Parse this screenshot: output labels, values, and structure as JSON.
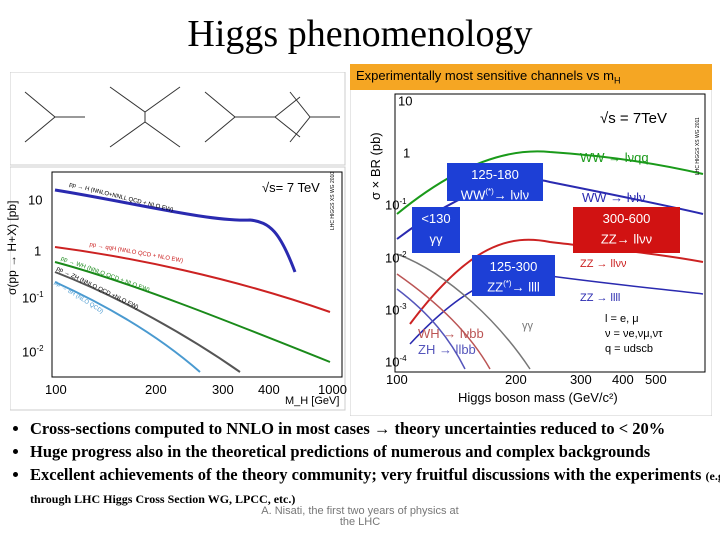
{
  "header": {
    "title": "Higgs phenomenology"
  },
  "left_plot": {
    "y_label": "σ(pp → H+X) [pb]",
    "x_label": "M_H [GeV]",
    "energy": "√s= 7 TeV",
    "source": "LHC HIGGS XS WG 2010",
    "yticks": [
      {
        "base": "10",
        "exp": ""
      },
      {
        "base": "1",
        "exp": ""
      },
      {
        "base": "10",
        "exp": "-1"
      },
      {
        "base": "10",
        "exp": "-2"
      }
    ],
    "xticks": [
      "100",
      "200",
      "300",
      "400",
      "1000"
    ],
    "curves": [
      "pp → H (NNLO+NNLL QCD + NLO EW)",
      "pp → qqH (NNLO QCD + NLO EW)",
      "pp → WH (NNLO QCD + NLO EW)",
      "pp → ZH (NNLO QCD +NLO EW)",
      "pp → ttH (NLO QCD)"
    ]
  },
  "right_plot": {
    "heading": {
      "text": "Experimentally most sensitive channels vs m",
      "sub": "H"
    },
    "y_label": "σ × BR (pb)",
    "x_label": "Higgs boson mass (GeV/c²)",
    "energy": "√s = 7TeV",
    "source": "LHC HIGGS XS WG 2011",
    "yticks": [
      {
        "base": "10",
        "exp": ""
      },
      {
        "base": "1",
        "exp": ""
      },
      {
        "base": "10",
        "exp": "-1"
      },
      {
        "base": "10",
        "exp": "-2"
      },
      {
        "base": "10",
        "exp": "-3"
      },
      {
        "base": "10",
        "exp": "-4"
      }
    ],
    "xticks": [
      "100",
      "200",
      "300",
      "400",
      "500"
    ],
    "channels": [
      "WW → lνqq",
      "WW → lνlν",
      "ZZ → llνν",
      "ZZ → llll",
      "γγ",
      "WH → lνbb",
      "ZH → llbb"
    ],
    "legend": [
      "l = e, μ",
      "ν = νe,νμ,ντ",
      "q = udscb"
    ]
  },
  "callouts": [
    {
      "range": "125-180",
      "label": "WW",
      "sup": "(*)",
      "rest": "→ lνlν"
    },
    {
      "range": "<130",
      "label": "γγ",
      "sup": "",
      "rest": ""
    },
    {
      "range": "300-600",
      "label": "ZZ",
      "sup": "",
      "rest": "→ llνν"
    },
    {
      "range": "125-300",
      "label": "ZZ",
      "sup": "(*)",
      "rest": "→ llll"
    }
  ],
  "bullets": [
    {
      "text": "Cross-sections computed to NNLO in most cases → theory uncertainties reduced to < 20%",
      "small": ""
    },
    {
      "text": "Huge progress also in the theoretical predictions of numerous and complex backgrounds",
      "small": ""
    },
    {
      "text": "Excellent achievements of the theory community; very fruitful discussions with the experiments",
      "small": "(e.g. through LHC Higgs Cross Section WG, LPCC, etc.)"
    }
  ],
  "footer": "A. Nisati, the first two years of physics at the LHC"
}
